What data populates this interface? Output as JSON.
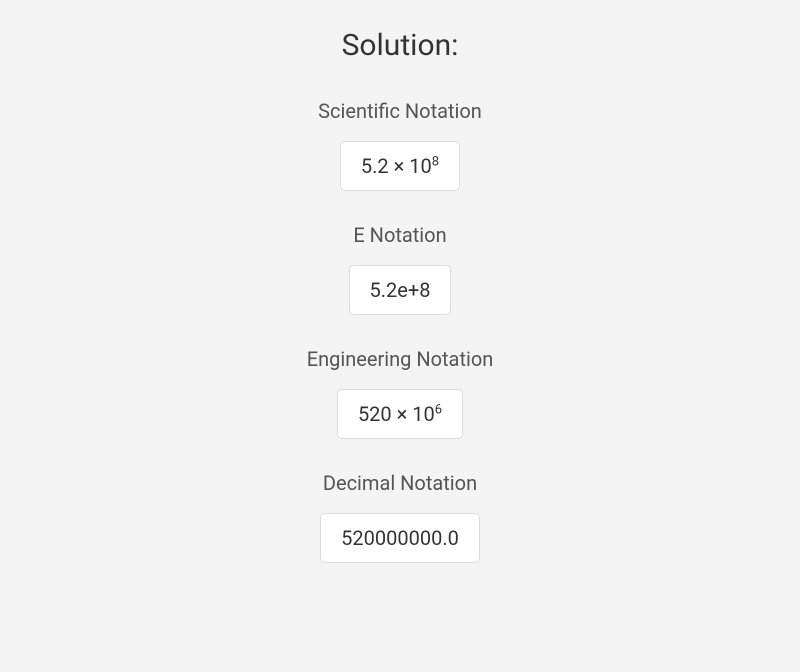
{
  "page": {
    "title": "Solution:",
    "background_color": "#f4f4f4",
    "box_background": "#ffffff",
    "box_border_color": "#dcdcdc",
    "title_color": "#333333",
    "label_color": "#555555",
    "value_color": "#333333",
    "title_fontsize": 30,
    "label_fontsize": 20,
    "value_fontsize": 20
  },
  "sections": {
    "scientific": {
      "label": "Scientific Notation",
      "coefficient": "5.2",
      "exponent": "8"
    },
    "e_notation": {
      "label": "E Notation",
      "value": "5.2e+8"
    },
    "engineering": {
      "label": "Engineering Notation",
      "coefficient": "520",
      "exponent": "6"
    },
    "decimal": {
      "label": "Decimal Notation",
      "value": "520000000.0"
    }
  }
}
